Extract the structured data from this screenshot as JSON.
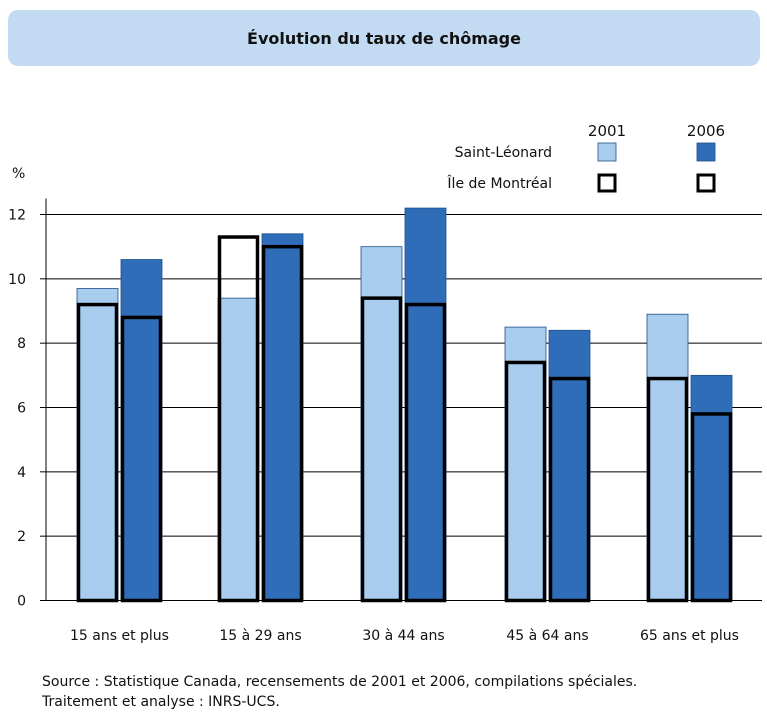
{
  "chart_data": {
    "type": "bar",
    "title": "Évolution du taux de chômage",
    "ylabel": "%",
    "ylim": [
      0,
      12
    ],
    "yticks": [
      0,
      2,
      4,
      6,
      8,
      10,
      12
    ],
    "categories": [
      "15 ans et plus",
      "15 à 29 ans",
      "30 à 44 ans",
      "45 à 64 ans",
      "65 ans et plus"
    ],
    "legend": {
      "years": [
        "2001",
        "2006"
      ],
      "series_labels": [
        "Saint-Léonard",
        "Île de Montréal"
      ]
    },
    "series": [
      {
        "name": "Saint-Léonard",
        "year": "2001",
        "values": [
          9.7,
          9.4,
          11.0,
          8.5,
          8.9
        ],
        "color": "#a8cdee",
        "style": "fill"
      },
      {
        "name": "Saint-Léonard",
        "year": "2006",
        "values": [
          10.6,
          11.4,
          12.2,
          8.4,
          7.0
        ],
        "color": "#2f6db8",
        "style": "fill"
      },
      {
        "name": "Île de Montréal",
        "year": "2001",
        "values": [
          9.2,
          11.3,
          9.4,
          7.4,
          6.9
        ],
        "color": "#000000",
        "style": "outline"
      },
      {
        "name": "Île de Montréal",
        "year": "2006",
        "values": [
          8.8,
          11.0,
          9.2,
          6.9,
          5.8
        ],
        "color": "#000000",
        "style": "outline"
      }
    ],
    "legend_position": "top-right",
    "grid": "horizontal"
  },
  "source_lines": [
    "Source : Statistique Canada, recensements de 2001 et 2006, compilations spéciales.",
    "Traitement et analyse : INRS-UCS."
  ]
}
